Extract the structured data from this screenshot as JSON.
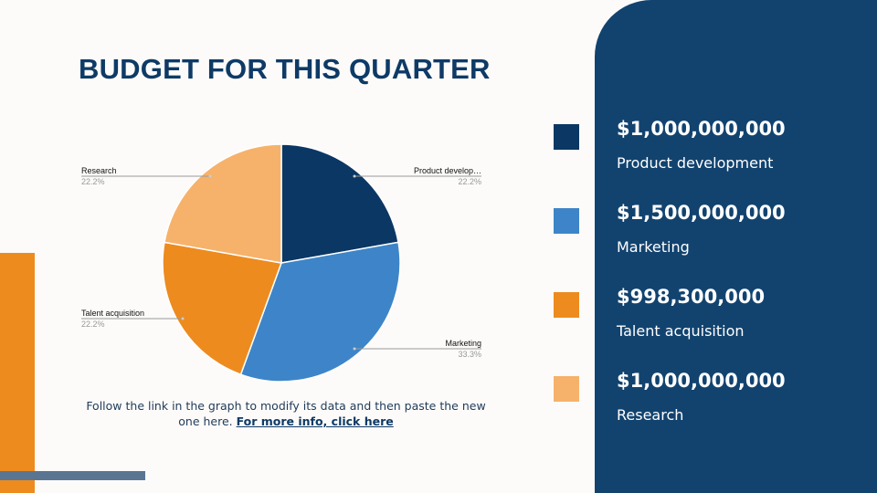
{
  "title": "BUDGET FOR THIS QUARTER",
  "chart_data": {
    "type": "pie",
    "categories": [
      "Product develop…",
      "Marketing",
      "Talent acquisition",
      "Research"
    ],
    "values": [
      22.2,
      33.3,
      22.2,
      22.2
    ],
    "value_labels": [
      "22.2%",
      "33.3%",
      "22.2%",
      "22.2%"
    ],
    "colors": [
      "#0b3764",
      "#3d85c8",
      "#ed8b1f",
      "#f6b26b"
    ]
  },
  "caption": {
    "text": "Follow the link in the graph to modify its data and then paste the new one here.",
    "link": "For more info, click here"
  },
  "budget_items": [
    {
      "amount": "$1,000,000,000",
      "label": "Product development",
      "color": "#0b3764"
    },
    {
      "amount": "$1,500,000,000",
      "label": "Marketing",
      "color": "#3d85c8"
    },
    {
      "amount": "$998,300,000",
      "label": "Talent acquisition",
      "color": "#ed8b1f"
    },
    {
      "amount": "$1,000,000,000",
      "label": "Research",
      "color": "#f6b26b"
    }
  ]
}
